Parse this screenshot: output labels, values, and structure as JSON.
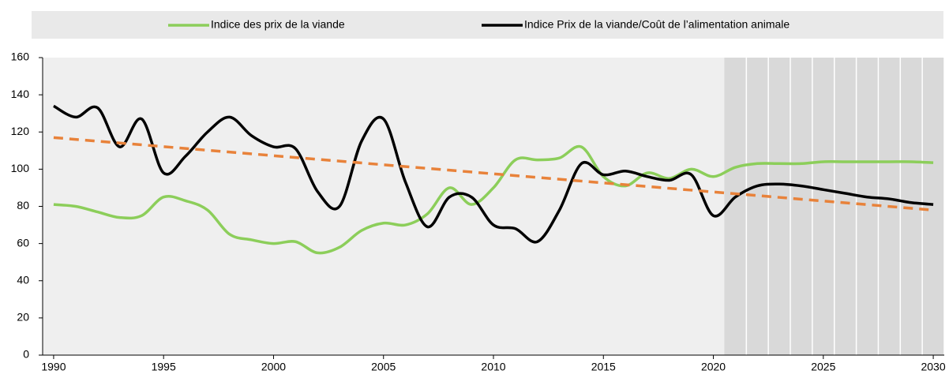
{
  "chart_data": {
    "type": "line",
    "x": [
      1990,
      1991,
      1992,
      1993,
      1994,
      1995,
      1996,
      1997,
      1998,
      1999,
      2000,
      2001,
      2002,
      2003,
      2004,
      2005,
      2006,
      2007,
      2008,
      2009,
      2010,
      2011,
      2012,
      2013,
      2014,
      2015,
      2016,
      2017,
      2018,
      2019,
      2020,
      2021,
      2022,
      2023,
      2024,
      2025,
      2026,
      2027,
      2028,
      2029,
      2030
    ],
    "series": [
      {
        "name": "Indice des prix de la viande",
        "color": "#8cce5a",
        "values": [
          81,
          80,
          77,
          74,
          75,
          85,
          83,
          78,
          65,
          62,
          60,
          61,
          55,
          58,
          67,
          71,
          70,
          76,
          90,
          81,
          90,
          105,
          105,
          106,
          112,
          96,
          91,
          98,
          95,
          100,
          96,
          101,
          103,
          103,
          103,
          104,
          104,
          104,
          104,
          104,
          103.5
        ]
      },
      {
        "name": "Indice Prix de la viande/Coût de l’alimentation animale",
        "color": "#000000",
        "values": [
          134,
          128,
          133,
          112,
          127,
          98,
          107,
          120,
          128,
          118,
          112,
          111,
          88,
          80,
          115,
          127,
          93,
          69,
          85,
          85,
          70,
          68,
          61,
          78,
          103,
          97,
          99,
          96,
          94,
          97,
          75,
          85,
          91,
          92,
          91,
          89,
          87,
          85,
          84,
          82,
          81
        ]
      }
    ],
    "trend": {
      "x": [
        1990,
        2030
      ],
      "values": [
        117,
        78
      ],
      "color": "#e8823a"
    },
    "projection_xlim": [
      2020.5,
      2030.5
    ],
    "xlim": [
      1989.5,
      2030.5
    ],
    "xticks": [
      1990,
      1995,
      2000,
      2005,
      2010,
      2015,
      2020,
      2025,
      2030
    ],
    "ylim": [
      0,
      160
    ],
    "yticks": [
      0,
      20,
      40,
      60,
      80,
      100,
      120,
      140,
      160
    ]
  }
}
